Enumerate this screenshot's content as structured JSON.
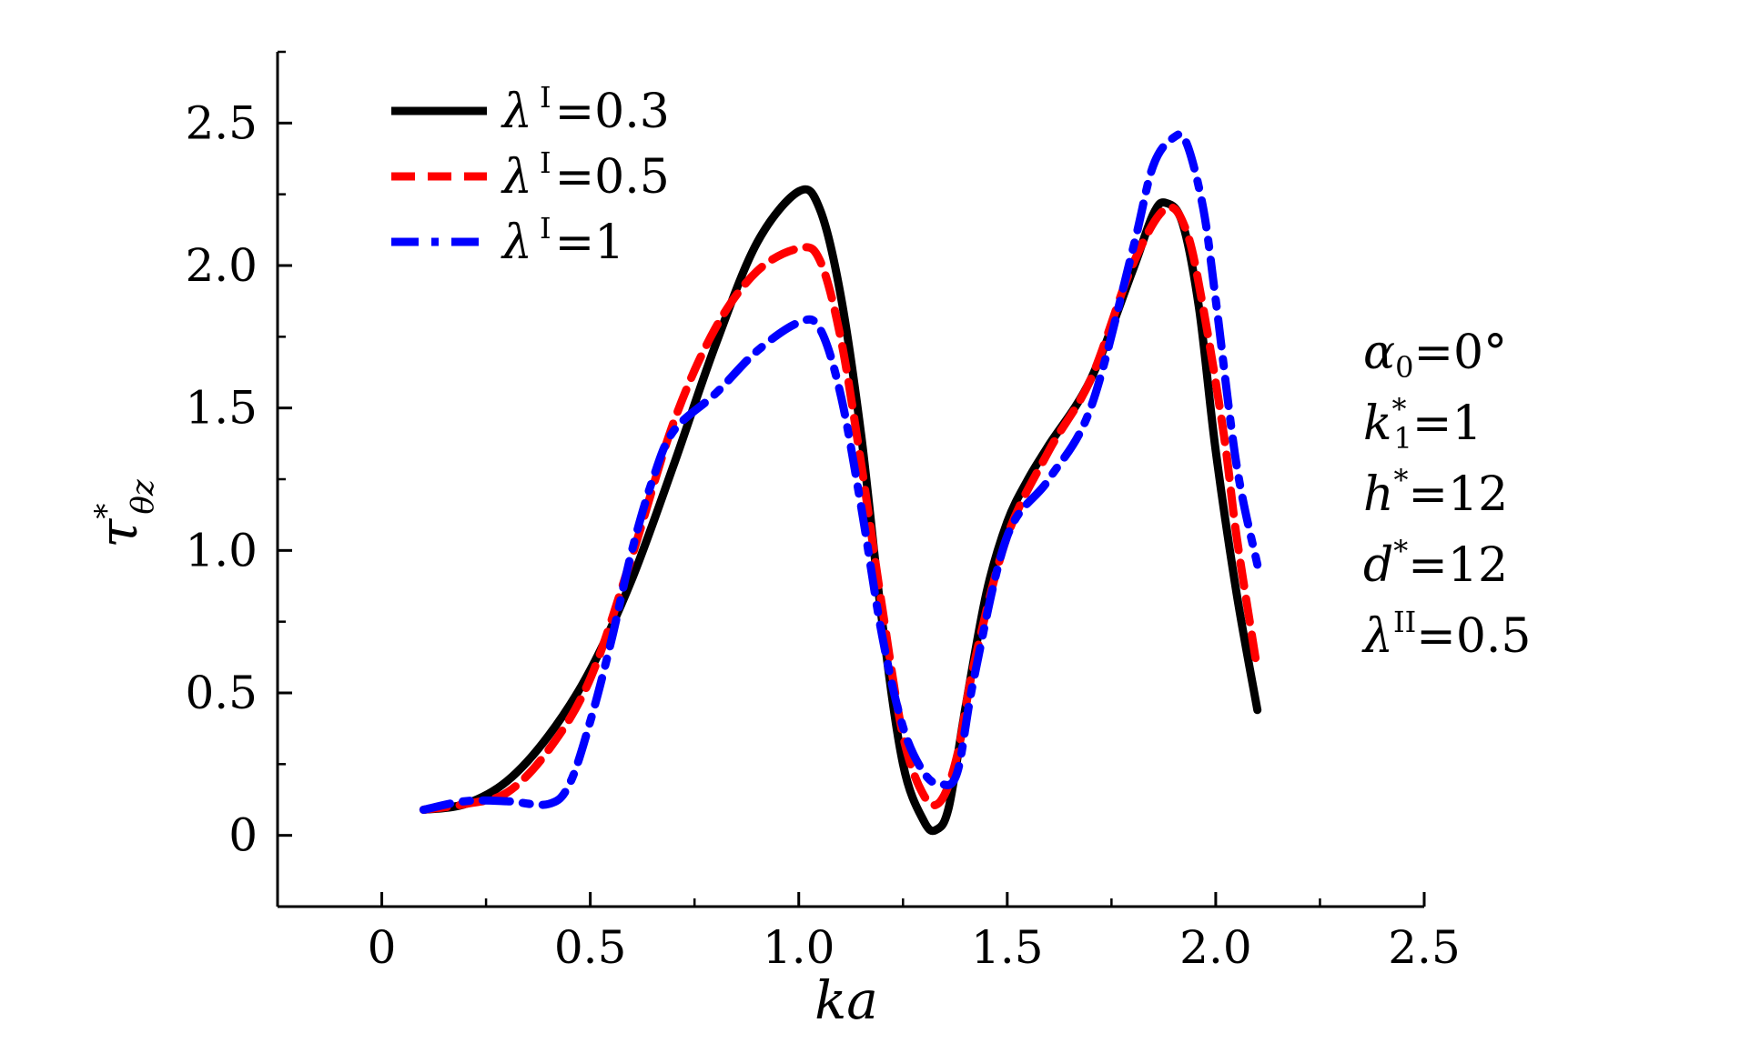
{
  "chart_data": {
    "type": "line",
    "xlabel": "ka",
    "ylabel": "τ*θz",
    "xlim": [
      -0.25,
      2.5
    ],
    "ylim": [
      -0.25,
      2.75
    ],
    "x_ticks": [
      "0",
      "0.5",
      "1.0",
      "1.5",
      "2.0",
      "2.5"
    ],
    "x_tick_values": [
      0,
      0.5,
      1.0,
      1.5,
      2.0,
      2.5
    ],
    "y_ticks": [
      "0",
      "0.5",
      "1.0",
      "1.5",
      "2.0",
      "2.5"
    ],
    "y_tick_values": [
      0,
      0.5,
      1.0,
      1.5,
      2.0,
      2.5
    ],
    "grid": false,
    "legend_position": "top-left",
    "series": [
      {
        "name": "λI=0.3",
        "label_symbol": "λ",
        "label_sup": "I",
        "label_value": "=0.3",
        "color": "#000000",
        "style": "solid",
        "x": [
          0.1,
          0.2,
          0.3,
          0.4,
          0.5,
          0.6,
          0.7,
          0.8,
          0.9,
          1.0,
          1.05,
          1.1,
          1.15,
          1.2,
          1.25,
          1.3,
          1.33,
          1.36,
          1.4,
          1.45,
          1.5,
          1.55,
          1.6,
          1.7,
          1.8,
          1.85,
          1.88,
          1.92,
          1.96,
          2.0,
          2.05,
          2.1
        ],
        "y": [
          0.09,
          0.11,
          0.19,
          0.35,
          0.58,
          0.9,
          1.3,
          1.72,
          2.08,
          2.26,
          2.2,
          1.9,
          1.4,
          0.75,
          0.25,
          0.05,
          0.02,
          0.1,
          0.45,
          0.85,
          1.1,
          1.25,
          1.37,
          1.6,
          1.98,
          2.18,
          2.22,
          2.15,
          1.85,
          1.35,
          0.85,
          0.44
        ]
      },
      {
        "name": "λI=0.5",
        "label_symbol": "λ",
        "label_sup": "I",
        "label_value": "=0.5",
        "color": "#ff0000",
        "style": "dashed",
        "x": [
          0.1,
          0.2,
          0.3,
          0.4,
          0.5,
          0.6,
          0.7,
          0.8,
          0.9,
          1.0,
          1.05,
          1.1,
          1.15,
          1.2,
          1.25,
          1.3,
          1.34,
          1.38,
          1.42,
          1.5,
          1.6,
          1.7,
          1.8,
          1.88,
          1.93,
          1.97,
          2.02,
          2.05,
          2.1
        ],
        "y": [
          0.09,
          0.11,
          0.15,
          0.3,
          0.55,
          0.98,
          1.45,
          1.78,
          1.98,
          2.06,
          2.02,
          1.75,
          1.3,
          0.8,
          0.35,
          0.14,
          0.12,
          0.28,
          0.6,
          1.05,
          1.35,
          1.6,
          2.0,
          2.2,
          2.12,
          1.85,
          1.4,
          1.05,
          0.58
        ]
      },
      {
        "name": "λI=1",
        "label_symbol": "λ",
        "label_sup": "I",
        "label_value": "=1",
        "color": "#0000ff",
        "style": "dashdot",
        "x": [
          0.1,
          0.2,
          0.3,
          0.4,
          0.45,
          0.5,
          0.55,
          0.6,
          0.65,
          0.7,
          0.8,
          0.9,
          1.0,
          1.05,
          1.1,
          1.15,
          1.2,
          1.25,
          1.3,
          1.34,
          1.38,
          1.42,
          1.5,
          1.6,
          1.7,
          1.8,
          1.85,
          1.9,
          1.93,
          1.97,
          2.0,
          2.05,
          2.1
        ],
        "y": [
          0.09,
          0.12,
          0.12,
          0.11,
          0.18,
          0.4,
          0.68,
          1.0,
          1.25,
          1.42,
          1.55,
          1.7,
          1.8,
          1.78,
          1.55,
          1.15,
          0.7,
          0.38,
          0.22,
          0.18,
          0.22,
          0.55,
          1.05,
          1.25,
          1.5,
          2.05,
          2.35,
          2.45,
          2.43,
          2.2,
          1.88,
          1.3,
          0.95
        ]
      }
    ],
    "annotations": [
      {
        "symbol": "α",
        "sub": "0",
        "value": "=0°"
      },
      {
        "symbol": "k",
        "sup": "*",
        "sub": "1",
        "value": "=1"
      },
      {
        "symbol": "h",
        "sup": "*",
        "value": "=12"
      },
      {
        "symbol": "d",
        "sup": "*",
        "value": "=12"
      },
      {
        "symbol": "λ",
        "sup": "II",
        "value": "=0.5"
      }
    ]
  }
}
